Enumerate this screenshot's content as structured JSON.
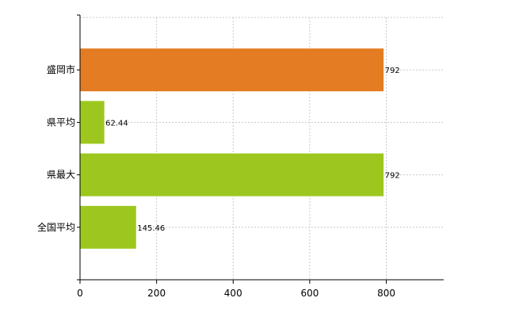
{
  "chart_data": {
    "type": "bar",
    "orientation": "horizontal",
    "categories": [
      "盛岡市",
      "県平均",
      "県最大",
      "全国平均"
    ],
    "values": [
      792,
      62.44,
      792,
      145.46
    ],
    "value_labels": [
      "792",
      "62.44",
      "792",
      "145.46"
    ],
    "colors": [
      "#e37c22",
      "#9dc71f",
      "#9dc71f",
      "#9dc71f"
    ],
    "xlim": [
      0,
      950
    ],
    "xticks": [
      0,
      200,
      400,
      600,
      800
    ],
    "grid": true,
    "title": "",
    "xlabel": "",
    "ylabel": ""
  }
}
